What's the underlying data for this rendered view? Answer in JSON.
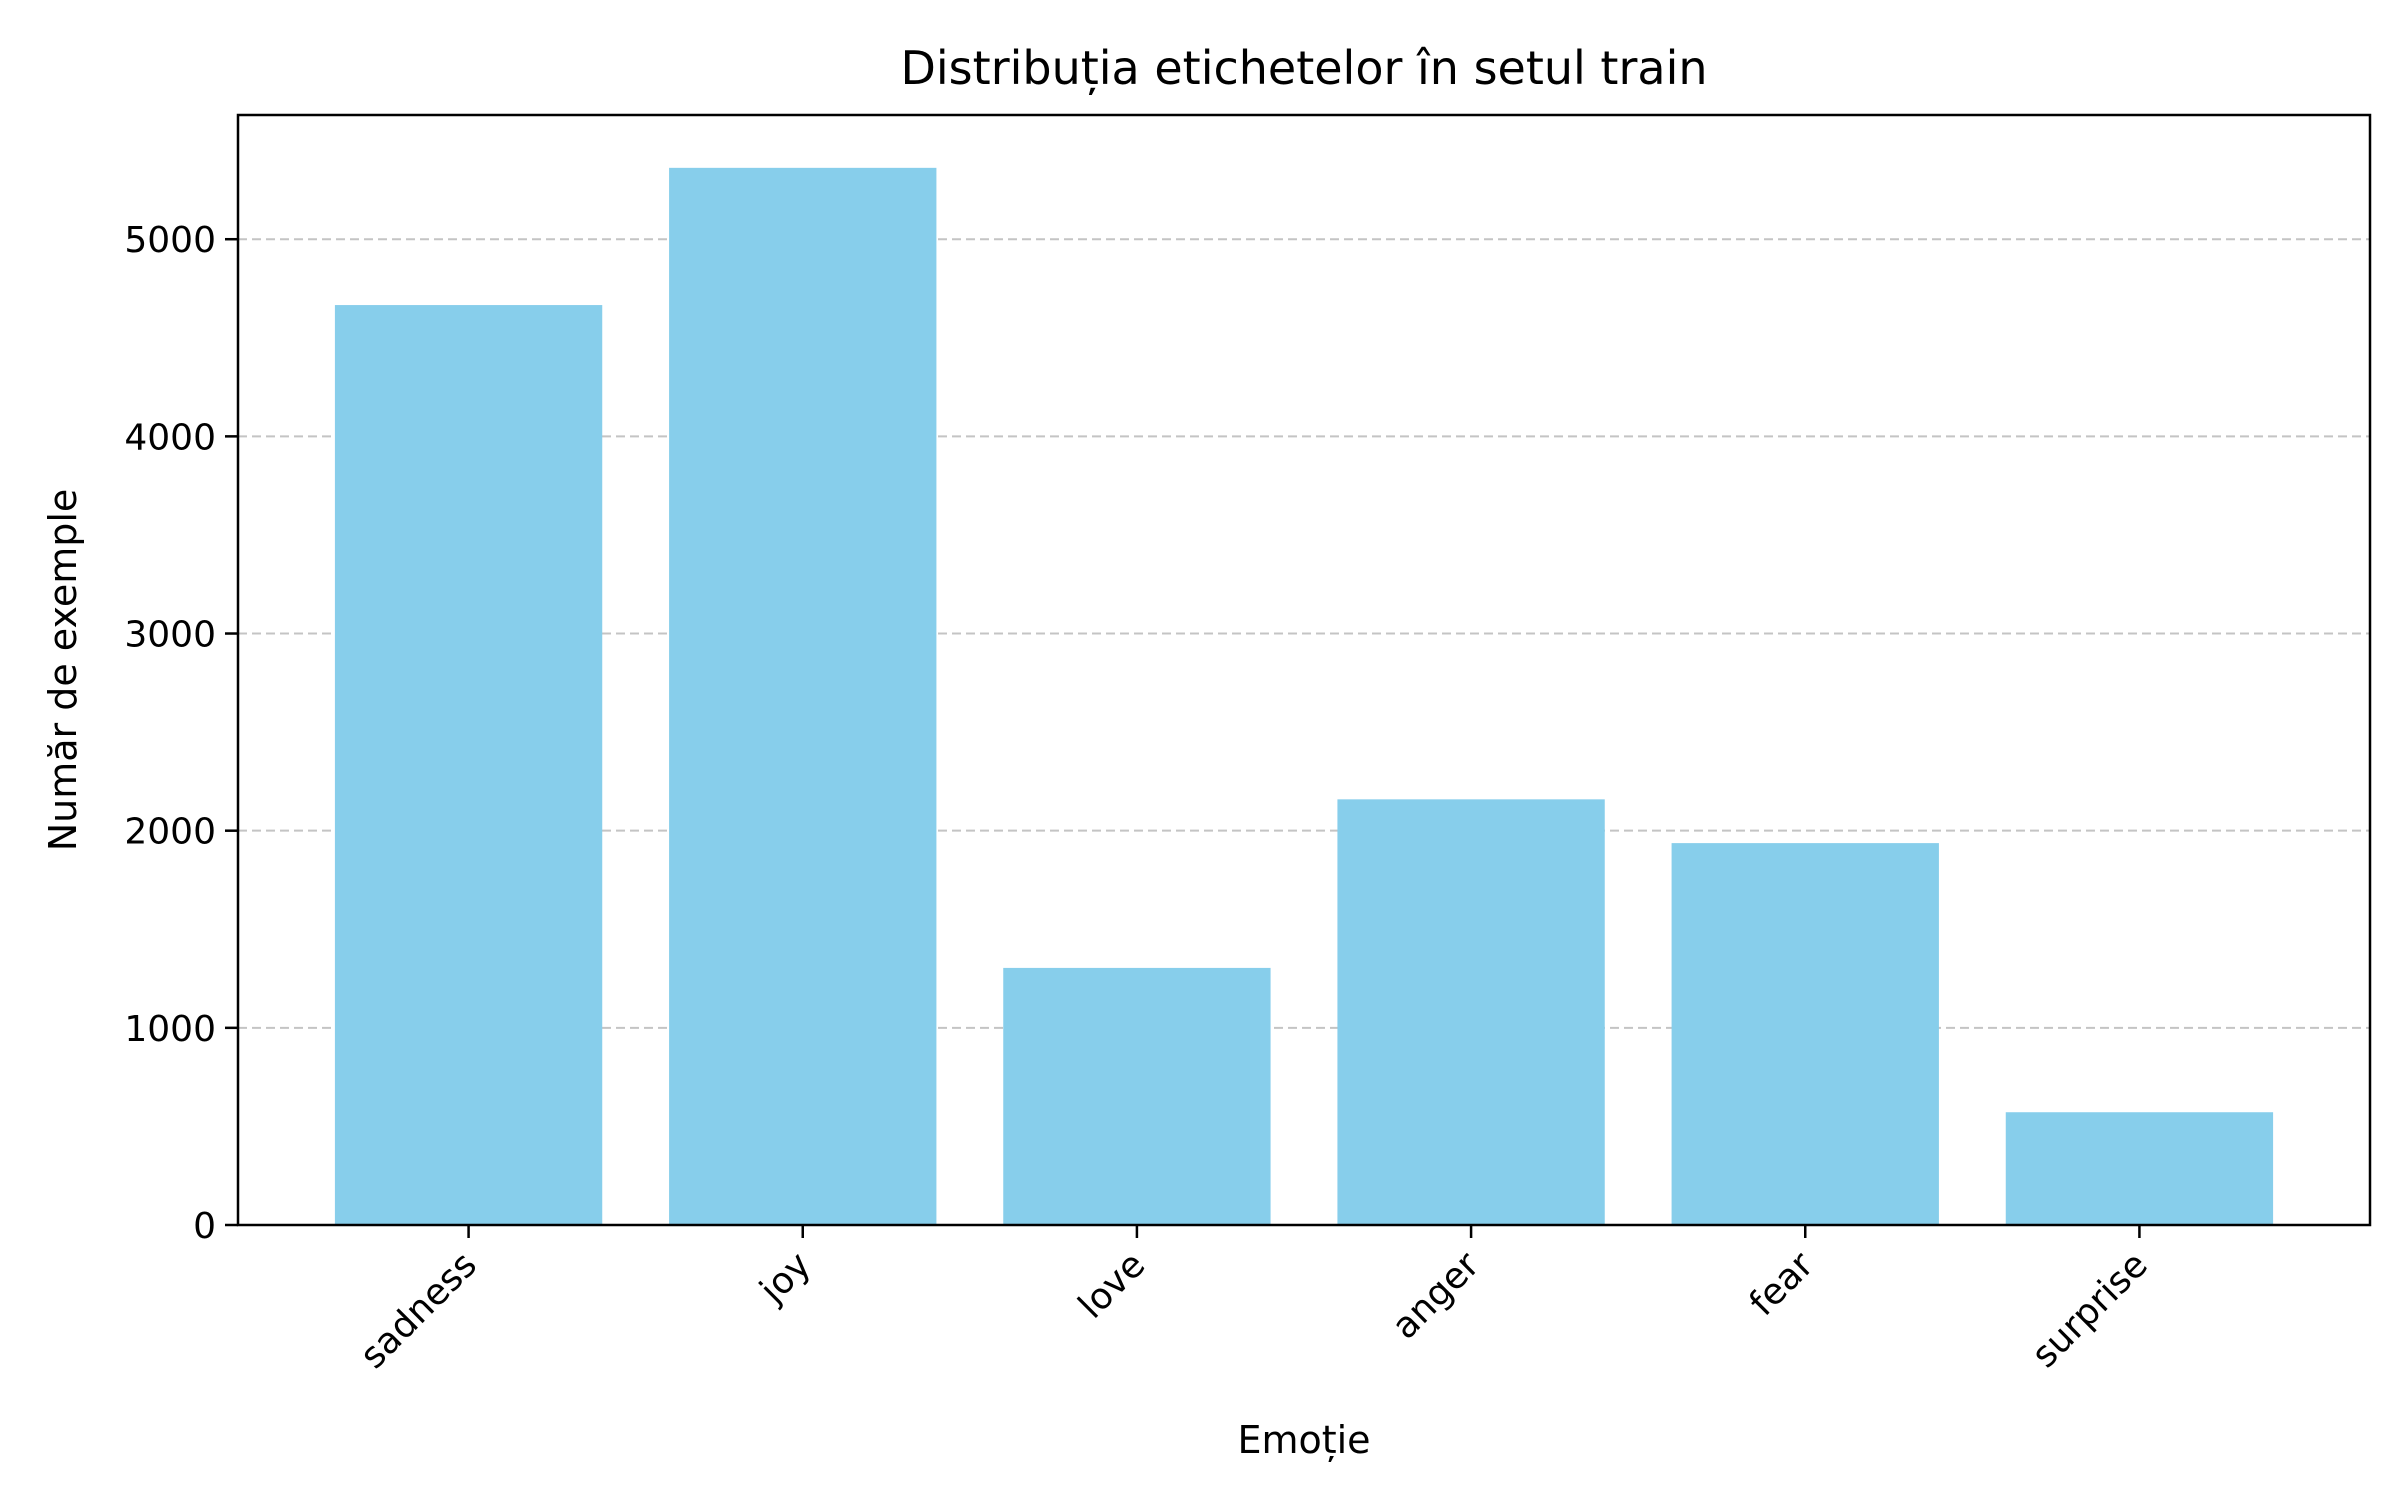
{
  "chart_data": {
    "type": "bar",
    "title": "Distribuția etichetelor în setul train",
    "xlabel": "Emoție",
    "ylabel": "Număr de exemple",
    "categories": [
      "sadness",
      "joy",
      "love",
      "anger",
      "fear",
      "surprise"
    ],
    "values": [
      4666,
      5362,
      1304,
      2159,
      1937,
      572
    ],
    "ylim": [
      0,
      5630
    ],
    "yticks": [
      0,
      1000,
      2000,
      3000,
      4000,
      5000
    ],
    "grid": "y-dashed",
    "x_tick_rotation_deg": 45,
    "colors": {
      "bar": "#87CEEB",
      "grid": "#c4c4c4",
      "axis": "#000000"
    }
  }
}
